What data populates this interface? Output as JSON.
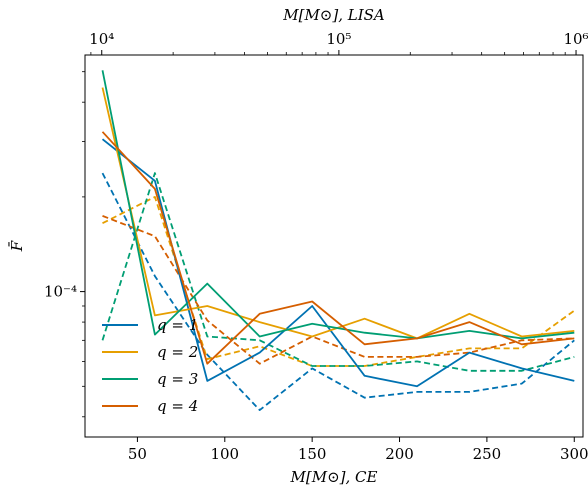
{
  "chart_data": {
    "type": "line",
    "xlabel": "M[M⊙], CE",
    "x2label": "M[M⊙], LISA",
    "ylabel": "F̄",
    "xlim": [
      20,
      305
    ],
    "x_ticks": [
      50,
      100,
      150,
      200,
      250,
      300
    ],
    "x_tick_labels": [
      "50",
      "100",
      "150",
      "200",
      "250",
      "300"
    ],
    "top_axis": {
      "scale": "log",
      "xlim": [
        8500,
        1070000
      ],
      "ticks": [
        10000,
        100000,
        1000000
      ],
      "tick_labels": [
        "10⁴",
        "10⁵",
        "10⁶"
      ]
    },
    "y_scale": "log",
    "ylim": [
      3.45e-05,
      0.000565
    ],
    "y_ticks": [
      0.0001
    ],
    "y_tick_labels": [
      "10⁻⁴"
    ],
    "x": [
      30,
      60,
      90,
      120,
      150,
      180,
      210,
      240,
      270,
      300
    ],
    "series": [
      {
        "name": "q = 1",
        "style": "solid",
        "color": "#0072b2",
        "values": [
          0.000305,
          0.000225,
          5.2e-05,
          6.4e-05,
          9e-05,
          5.4e-05,
          5e-05,
          6.4e-05,
          5.7e-05,
          5.2e-05
        ]
      },
      {
        "name": "q = 2",
        "style": "solid",
        "color": "#e69f00",
        "values": [
          0.000445,
          8.4e-05,
          9e-05,
          8e-05,
          7.2e-05,
          8.2e-05,
          7.1e-05,
          8.5e-05,
          7.2e-05,
          7.5e-05
        ]
      },
      {
        "name": "q = 3",
        "style": "solid",
        "color": "#009e73",
        "values": [
          0.000505,
          7.3e-05,
          0.000106,
          7.2e-05,
          7.9e-05,
          7.4e-05,
          7.1e-05,
          7.5e-05,
          7.1e-05,
          7.4e-05
        ]
      },
      {
        "name": "q = 4",
        "style": "solid",
        "color": "#d55e00",
        "values": [
          0.000322,
          0.000212,
          5.9e-05,
          8.5e-05,
          9.3e-05,
          6.8e-05,
          7.1e-05,
          8e-05,
          6.8e-05,
          7.1e-05
        ]
      },
      {
        "name": "q = 1",
        "style": "dashed",
        "color": "#0072b2",
        "values": [
          0.000238,
          0.000112,
          6.3e-05,
          4.2e-05,
          5.7e-05,
          4.6e-05,
          4.8e-05,
          4.8e-05,
          5.1e-05,
          7e-05
        ]
      },
      {
        "name": "q = 2",
        "style": "dashed",
        "color": "#e69f00",
        "values": [
          0.000165,
          0.0002,
          6.1e-05,
          6.7e-05,
          5.8e-05,
          5.8e-05,
          6.2e-05,
          6.6e-05,
          6.6e-05,
          8.7e-05
        ]
      },
      {
        "name": "q = 3",
        "style": "dashed",
        "color": "#009e73",
        "values": [
          7e-05,
          0.000238,
          7.2e-05,
          7e-05,
          5.8e-05,
          5.8e-05,
          6e-05,
          5.6e-05,
          5.6e-05,
          6.2e-05
        ]
      },
      {
        "name": "q = 4",
        "style": "dashed",
        "color": "#d55e00",
        "values": [
          0.000174,
          0.00015,
          8.1e-05,
          5.9e-05,
          7.2e-05,
          6.2e-05,
          6.2e-05,
          6.4e-05,
          7e-05,
          7.1e-05
        ]
      }
    ],
    "legend": {
      "position": "lower-left",
      "entries": [
        {
          "label": "q = 1",
          "color": "#0072b2"
        },
        {
          "label": "q = 2",
          "color": "#e69f00"
        },
        {
          "label": "q = 3",
          "color": "#009e73"
        },
        {
          "label": "q = 4",
          "color": "#d55e00"
        }
      ]
    },
    "grid": false
  }
}
